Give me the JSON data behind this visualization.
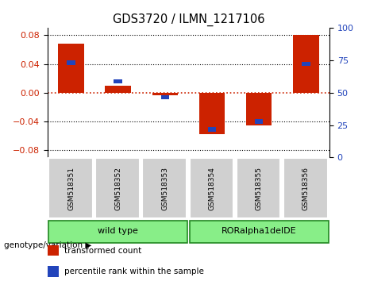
{
  "title": "GDS3720 / ILMN_1217106",
  "categories": [
    "GSM518351",
    "GSM518352",
    "GSM518353",
    "GSM518354",
    "GSM518355",
    "GSM518356"
  ],
  "red_values": [
    0.068,
    0.01,
    -0.004,
    -0.058,
    -0.046,
    0.08
  ],
  "blue_values_pct": [
    76,
    60,
    46,
    18,
    25,
    75
  ],
  "ylim": [
    -0.09,
    0.09
  ],
  "right_ylim": [
    0,
    100
  ],
  "yticks_left": [
    -0.08,
    -0.04,
    0,
    0.04,
    0.08
  ],
  "yticks_right": [
    0,
    25,
    50,
    75,
    100
  ],
  "group1_label": "wild type",
  "group2_label": "RORalpha1delDE",
  "group_label_prefix": "genotype/variation",
  "legend_red": "transformed count",
  "legend_blue": "percentile rank within the sample",
  "bar_color_red": "#cc2200",
  "bar_color_blue": "#2244bb",
  "group_color": "#88ee88",
  "group_border": "#228822",
  "bar_width": 0.55,
  "blue_bar_width": 0.18,
  "blue_bar_height": 0.006,
  "figsize": [
    4.61,
    3.54
  ],
  "dpi": 100
}
